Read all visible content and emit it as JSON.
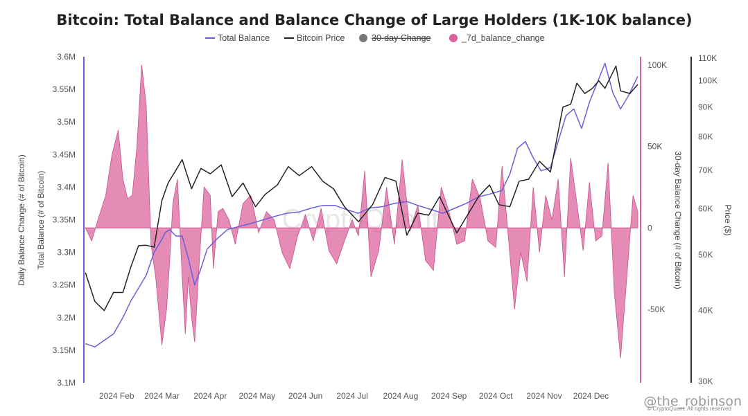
{
  "chart_data": {
    "type": "line",
    "title": "Bitcoin: Total Balance and Balance Change of Large Holders (1K-10K balance)",
    "legend": {
      "placement": "top-center",
      "items": [
        {
          "label": "Total Balance",
          "symbol": "line",
          "color": "#6a5fd8",
          "struck": false
        },
        {
          "label": "Bitcoin Price",
          "symbol": "line",
          "color": "#222222",
          "struck": false
        },
        {
          "label": "30-day Change",
          "symbol": "dot",
          "color": "#777777",
          "struck": true
        },
        {
          "label": "_7d_balance_change",
          "symbol": "dot",
          "color": "#d9609a",
          "struck": false
        }
      ]
    },
    "axes": {
      "left": {
        "title": "Daily Balance Change (# of Bitcoin)",
        "title2": "Total Balance (# of Bitcoin)",
        "range": [
          3100000,
          3600000
        ],
        "ticks": [
          {
            "v": 3100000,
            "label": "3.1M"
          },
          {
            "v": 3150000,
            "label": "3.15M"
          },
          {
            "v": 3200000,
            "label": "3.2M"
          },
          {
            "v": 3250000,
            "label": "3.25M"
          },
          {
            "v": 3300000,
            "label": "3.3M"
          },
          {
            "v": 3350000,
            "label": "3.35M"
          },
          {
            "v": 3400000,
            "label": "3.4M"
          },
          {
            "v": 3450000,
            "label": "3.45M"
          },
          {
            "v": 3500000,
            "label": "3.5M"
          },
          {
            "v": 3550000,
            "label": "3.55M"
          },
          {
            "v": 3600000,
            "label": "3.6M"
          }
        ],
        "color": "#6a5fd8"
      },
      "change": {
        "title": "30-day Balance Change (# of Bitcoin)",
        "range": [
          -95000,
          105000
        ],
        "ticks": [
          {
            "v": 100000,
            "label": "100K"
          },
          {
            "v": 50000,
            "label": "50K"
          },
          {
            "v": 0,
            "label": "0"
          },
          {
            "v": -50000,
            "label": "-50K"
          }
        ],
        "color": "#d9609a"
      },
      "price": {
        "title": "Price ($)",
        "scale": "log",
        "range": [
          30000,
          110000
        ],
        "ticks": [
          {
            "v": 110000,
            "label": "110K"
          },
          {
            "v": 100000,
            "label": "100K"
          },
          {
            "v": 90000,
            "label": "90K"
          },
          {
            "v": 80000,
            "label": "80K"
          },
          {
            "v": 70000,
            "label": "70K"
          },
          {
            "v": 60000,
            "label": "60K"
          },
          {
            "v": 50000,
            "label": "50K"
          },
          {
            "v": 40000,
            "label": "40K"
          },
          {
            "v": 30000,
            "label": "30K"
          }
        ],
        "color": "#222222"
      },
      "x": {
        "range": [
          "2024-01-11",
          "2024-12-31"
        ],
        "ticks": [
          {
            "date": "2024-02-01",
            "label": "2024 Feb"
          },
          {
            "date": "2024-03-01",
            "label": "2024 Mar"
          },
          {
            "date": "2024-04-01",
            "label": "2024 Apr"
          },
          {
            "date": "2024-05-01",
            "label": "2024 May"
          },
          {
            "date": "2024-06-01",
            "label": "2024 Jun"
          },
          {
            "date": "2024-07-01",
            "label": "2024 Jul"
          },
          {
            "date": "2024-08-01",
            "label": "2024 Aug"
          },
          {
            "date": "2024-09-01",
            "label": "2024 Sep"
          },
          {
            "date": "2024-10-01",
            "label": "2024 Oct"
          },
          {
            "date": "2024-11-01",
            "label": "2024 Nov"
          },
          {
            "date": "2024-12-01",
            "label": "2024 Dec"
          }
        ]
      }
    },
    "grid": false,
    "series": [
      {
        "name": "Total Balance",
        "axis": "left",
        "kind": "line",
        "color": "#6a5fd8",
        "x": [
          "2024-01-12",
          "2024-01-18",
          "2024-01-24",
          "2024-01-30",
          "2024-02-05",
          "2024-02-10",
          "2024-02-15",
          "2024-02-20",
          "2024-02-25",
          "2024-03-01",
          "2024-03-03",
          "2024-03-06",
          "2024-03-10",
          "2024-03-14",
          "2024-03-18",
          "2024-03-22",
          "2024-03-26",
          "2024-03-30",
          "2024-04-05",
          "2024-04-12",
          "2024-04-20",
          "2024-04-28",
          "2024-05-05",
          "2024-05-12",
          "2024-05-20",
          "2024-05-28",
          "2024-06-05",
          "2024-06-12",
          "2024-06-20",
          "2024-06-28",
          "2024-07-05",
          "2024-07-12",
          "2024-07-20",
          "2024-07-28",
          "2024-08-05",
          "2024-08-12",
          "2024-08-20",
          "2024-08-28",
          "2024-09-05",
          "2024-09-12",
          "2024-09-20",
          "2024-09-28",
          "2024-10-05",
          "2024-10-10",
          "2024-10-15",
          "2024-10-20",
          "2024-10-25",
          "2024-10-30",
          "2024-11-05",
          "2024-11-10",
          "2024-11-15",
          "2024-11-20",
          "2024-11-25",
          "2024-11-30",
          "2024-12-05",
          "2024-12-10",
          "2024-12-15",
          "2024-12-20",
          "2024-12-25",
          "2024-12-31"
        ],
        "values": [
          3160000,
          3155000,
          3165000,
          3175000,
          3200000,
          3225000,
          3245000,
          3265000,
          3300000,
          3320000,
          3330000,
          3335000,
          3325000,
          3325000,
          3290000,
          3250000,
          3275000,
          3305000,
          3320000,
          3335000,
          3340000,
          3345000,
          3350000,
          3355000,
          3360000,
          3362000,
          3368000,
          3372000,
          3372000,
          3365000,
          3360000,
          3368000,
          3370000,
          3375000,
          3378000,
          3372000,
          3366000,
          3360000,
          3368000,
          3375000,
          3385000,
          3390000,
          3395000,
          3420000,
          3460000,
          3470000,
          3445000,
          3425000,
          3430000,
          3470000,
          3510000,
          3520000,
          3490000,
          3530000,
          3560000,
          3590000,
          3545000,
          3520000,
          3540000,
          3570000
        ]
      },
      {
        "name": "Bitcoin Price",
        "axis": "price",
        "kind": "line",
        "color": "#222222",
        "x": [
          "2024-01-12",
          "2024-01-18",
          "2024-01-24",
          "2024-01-30",
          "2024-02-05",
          "2024-02-10",
          "2024-02-15",
          "2024-02-20",
          "2024-02-25",
          "2024-03-01",
          "2024-03-05",
          "2024-03-10",
          "2024-03-14",
          "2024-03-20",
          "2024-03-26",
          "2024-04-01",
          "2024-04-08",
          "2024-04-15",
          "2024-04-22",
          "2024-04-30",
          "2024-05-06",
          "2024-05-14",
          "2024-05-21",
          "2024-05-28",
          "2024-06-05",
          "2024-06-12",
          "2024-06-19",
          "2024-06-26",
          "2024-07-05",
          "2024-07-14",
          "2024-07-22",
          "2024-07-29",
          "2024-08-05",
          "2024-08-12",
          "2024-08-19",
          "2024-08-26",
          "2024-09-06",
          "2024-09-12",
          "2024-09-20",
          "2024-09-27",
          "2024-10-03",
          "2024-10-10",
          "2024-10-16",
          "2024-10-22",
          "2024-10-29",
          "2024-11-05",
          "2024-11-08",
          "2024-11-13",
          "2024-11-18",
          "2024-11-22",
          "2024-11-27",
          "2024-12-02",
          "2024-12-06",
          "2024-12-10",
          "2024-12-17",
          "2024-12-20",
          "2024-12-26",
          "2024-12-31"
        ],
        "values": [
          46500,
          41500,
          40000,
          43000,
          43000,
          47500,
          51800,
          51900,
          51500,
          62000,
          66500,
          70000,
          73000,
          65000,
          70500,
          69000,
          71500,
          63000,
          66500,
          60500,
          63500,
          66000,
          71000,
          68500,
          71000,
          67000,
          65000,
          60500,
          57000,
          61000,
          68000,
          67000,
          54000,
          59000,
          58500,
          63000,
          54500,
          58000,
          63000,
          66000,
          61000,
          60500,
          67000,
          67500,
          72500,
          69500,
          76500,
          90000,
          91000,
          99000,
          95000,
          97000,
          100000,
          97000,
          106000,
          96000,
          95000,
          98500
        ]
      },
      {
        "name": "_7d_balance_change",
        "axis": "change",
        "kind": "area",
        "color": "#d9609a",
        "x": [
          "2024-01-12",
          "2024-01-16",
          "2024-01-20",
          "2024-01-25",
          "2024-01-29",
          "2024-02-02",
          "2024-02-05",
          "2024-02-08",
          "2024-02-11",
          "2024-02-14",
          "2024-02-17",
          "2024-02-20",
          "2024-02-23",
          "2024-02-26",
          "2024-03-01",
          "2024-03-04",
          "2024-03-06",
          "2024-03-08",
          "2024-03-11",
          "2024-03-14",
          "2024-03-16",
          "2024-03-18",
          "2024-03-20",
          "2024-03-22",
          "2024-03-25",
          "2024-03-28",
          "2024-04-01",
          "2024-04-03",
          "2024-04-06",
          "2024-04-09",
          "2024-04-13",
          "2024-04-17",
          "2024-04-22",
          "2024-04-27",
          "2024-05-02",
          "2024-05-07",
          "2024-05-12",
          "2024-05-17",
          "2024-05-22",
          "2024-05-27",
          "2024-06-01",
          "2024-06-06",
          "2024-06-11",
          "2024-06-16",
          "2024-06-21",
          "2024-06-26",
          "2024-07-01",
          "2024-07-05",
          "2024-07-09",
          "2024-07-13",
          "2024-07-18",
          "2024-07-23",
          "2024-07-28",
          "2024-08-02",
          "2024-08-07",
          "2024-08-12",
          "2024-08-17",
          "2024-08-22",
          "2024-08-27",
          "2024-09-01",
          "2024-09-06",
          "2024-09-11",
          "2024-09-16",
          "2024-09-21",
          "2024-09-26",
          "2024-10-01",
          "2024-10-05",
          "2024-10-09",
          "2024-10-13",
          "2024-10-17",
          "2024-10-21",
          "2024-10-25",
          "2024-10-29",
          "2024-11-02",
          "2024-11-06",
          "2024-11-10",
          "2024-11-14",
          "2024-11-18",
          "2024-11-22",
          "2024-11-26",
          "2024-11-30",
          "2024-12-04",
          "2024-12-08",
          "2024-12-12",
          "2024-12-16",
          "2024-12-20",
          "2024-12-24",
          "2024-12-28",
          "2024-12-31"
        ],
        "values": [
          0,
          -8000,
          5000,
          20000,
          45000,
          60000,
          30000,
          18000,
          20000,
          50000,
          100000,
          75000,
          -10000,
          -30000,
          -72000,
          -50000,
          -20000,
          15000,
          30000,
          -30000,
          -65000,
          -30000,
          -55000,
          -70000,
          -20000,
          25000,
          20000,
          -25000,
          10000,
          12000,
          5000,
          -10000,
          15000,
          20000,
          -3000,
          10000,
          5000,
          -15000,
          -25000,
          -5000,
          8000,
          -8000,
          12000,
          -14000,
          -22000,
          -8000,
          5000,
          -5000,
          35000,
          -30000,
          -14000,
          25000,
          -10000,
          42000,
          -2000,
          14000,
          -20000,
          -26000,
          25000,
          10000,
          -10000,
          -8000,
          30000,
          18000,
          -8000,
          -12000,
          38000,
          -5000,
          -50000,
          -15000,
          -33000,
          25000,
          -15000,
          20000,
          5000,
          30000,
          -30000,
          43000,
          15000,
          -14000,
          28000,
          -8000,
          -5000,
          40000,
          -40000,
          -80000,
          -30000,
          20000,
          10000
        ]
      }
    ]
  },
  "watermark": {
    "brand": "CryptoQuant",
    "credit": "@the_robinson",
    "copyright": "© CryptoQuant. All rights reserved"
  }
}
